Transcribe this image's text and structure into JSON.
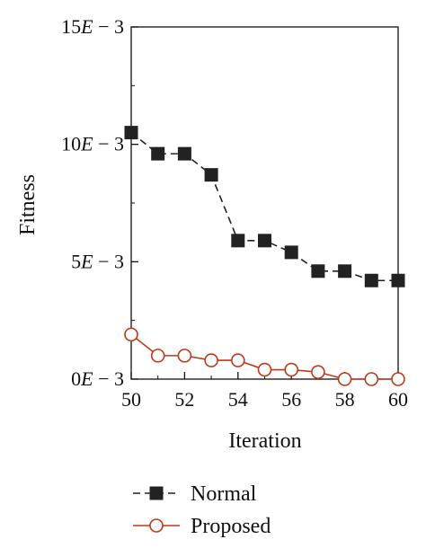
{
  "chart_data": {
    "type": "line",
    "xlabel": "Iteration",
    "ylabel": "Fitness",
    "xlim": [
      50,
      60
    ],
    "ylim": [
      0,
      0.015
    ],
    "xticks": [
      50,
      52,
      54,
      56,
      58,
      60
    ],
    "xtick_labels": [
      "50",
      "52",
      "54",
      "56",
      "58",
      "60"
    ],
    "yticks": [
      0,
      0.005,
      0.01,
      0.015
    ],
    "ytick_labels": [
      {
        "mantissa": "0",
        "suffix": " − 3"
      },
      {
        "mantissa": "5",
        "suffix": " − 3"
      },
      {
        "mantissa": "10",
        "suffix": " − 3"
      },
      {
        "mantissa": "15",
        "suffix": " − 3"
      }
    ],
    "ytick_exponent_symbol": "E",
    "grid": false,
    "legend_position": "bottom",
    "x": [
      50,
      51,
      52,
      53,
      54,
      55,
      56,
      57,
      58,
      59,
      60
    ],
    "series": [
      {
        "name": "Normal",
        "color": "#222222",
        "line_style": "dashed",
        "marker": "filled-square",
        "values": [
          0.0105,
          0.0096,
          0.0096,
          0.0087,
          0.0059,
          0.0059,
          0.0054,
          0.0046,
          0.0046,
          0.0042,
          0.0042
        ]
      },
      {
        "name": "Proposed",
        "color": "#c0391b",
        "line_style": "solid",
        "marker": "open-circle",
        "values": [
          0.0019,
          0.001,
          0.001,
          0.0008,
          0.0008,
          0.0004,
          0.0004,
          0.0003,
          0.0,
          0.0,
          0.0
        ]
      }
    ]
  }
}
